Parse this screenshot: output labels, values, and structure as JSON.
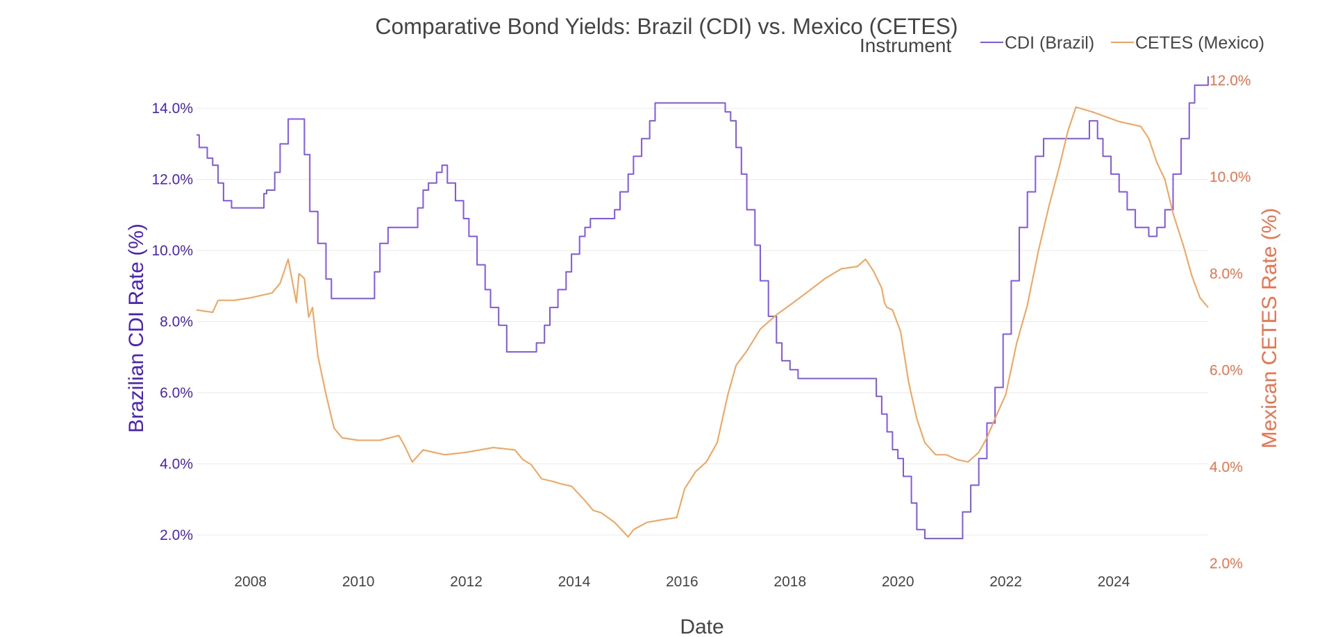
{
  "chart_data": {
    "type": "line",
    "title": "Comparative Bond Yields: Brazil (CDI) vs. Mexico (CETES)",
    "xlabel": "Date",
    "legend_title": "Instrument",
    "legend_position": "top-right",
    "x_range": [
      2007.0,
      2025.75
    ],
    "x_ticks": [
      2008,
      2010,
      2012,
      2014,
      2016,
      2018,
      2020,
      2022,
      2024
    ],
    "y_left": {
      "label": "Brazilian CDI Rate (%)",
      "range": [
        1.2,
        14.9
      ],
      "ticks": [
        2,
        4,
        6,
        8,
        10,
        12,
        14
      ],
      "tick_labels": [
        "2.0%",
        "4.0%",
        "6.0%",
        "8.0%",
        "10.0%",
        "12.0%",
        "14.0%"
      ],
      "color": "#4a1fbf"
    },
    "y_right": {
      "label": "Mexican CETES Rate (%)",
      "range": [
        2.0,
        12.0
      ],
      "ticks": [
        2,
        4,
        6,
        8,
        10,
        12
      ],
      "tick_labels": [
        "2.0%",
        "4.0%",
        "6.0%",
        "8.0%",
        "10.0%",
        "12.0%"
      ],
      "color": "#f0704a"
    },
    "series": [
      {
        "name": "CDI (Brazil)",
        "axis": "left",
        "color": "#8155ee",
        "shape": "step",
        "x": [
          2007.0,
          2007.05,
          2007.2,
          2007.3,
          2007.4,
          2007.5,
          2007.65,
          2007.8,
          2007.95,
          2008.25,
          2008.3,
          2008.45,
          2008.55,
          2008.7,
          2008.85,
          2009.0,
          2009.1,
          2009.25,
          2009.4,
          2009.5,
          2010.3,
          2010.4,
          2010.55,
          2011.1,
          2011.2,
          2011.3,
          2011.45,
          2011.55,
          2011.65,
          2011.8,
          2011.95,
          2012.05,
          2012.2,
          2012.35,
          2012.45,
          2012.6,
          2012.75,
          2013.3,
          2013.45,
          2013.55,
          2013.7,
          2013.85,
          2013.95,
          2014.1,
          2014.2,
          2014.3,
          2014.4,
          2014.75,
          2014.85,
          2015.0,
          2015.1,
          2015.25,
          2015.4,
          2015.5,
          2015.6,
          2016.8,
          2016.9,
          2017.0,
          2017.1,
          2017.2,
          2017.35,
          2017.45,
          2017.6,
          2017.75,
          2017.85,
          2018.0,
          2018.15,
          2018.25,
          2019.6,
          2019.7,
          2019.8,
          2019.9,
          2020.0,
          2020.1,
          2020.25,
          2020.35,
          2020.5,
          2020.6,
          2021.2,
          2021.35,
          2021.5,
          2021.65,
          2021.8,
          2021.95,
          2022.1,
          2022.25,
          2022.4,
          2022.55,
          2022.7,
          2023.55,
          2023.7,
          2023.8,
          2023.95,
          2024.1,
          2024.25,
          2024.4,
          2024.65,
          2024.8,
          2024.95,
          2025.1,
          2025.25,
          2025.4,
          2025.5,
          2025.75
        ],
        "y": [
          13.25,
          12.9,
          12.6,
          12.4,
          11.9,
          11.4,
          11.2,
          11.2,
          11.2,
          11.6,
          11.7,
          12.2,
          13.0,
          13.7,
          13.7,
          12.7,
          11.1,
          10.2,
          9.2,
          8.65,
          9.4,
          10.2,
          10.65,
          11.2,
          11.7,
          11.9,
          12.2,
          12.4,
          11.9,
          11.4,
          10.9,
          10.4,
          9.6,
          8.9,
          8.4,
          7.9,
          7.15,
          7.4,
          7.9,
          8.4,
          8.9,
          9.4,
          9.9,
          10.4,
          10.65,
          10.9,
          10.9,
          11.15,
          11.65,
          12.15,
          12.65,
          13.15,
          13.65,
          14.15,
          14.15,
          13.9,
          13.65,
          12.9,
          12.15,
          11.15,
          10.15,
          9.15,
          8.15,
          7.4,
          6.9,
          6.65,
          6.4,
          6.4,
          5.9,
          5.4,
          4.9,
          4.4,
          4.15,
          3.65,
          2.9,
          2.15,
          1.9,
          1.9,
          2.65,
          3.4,
          4.15,
          5.15,
          6.15,
          7.65,
          9.15,
          10.65,
          11.65,
          12.65,
          13.15,
          13.65,
          13.15,
          12.65,
          12.15,
          11.65,
          11.15,
          10.65,
          10.4,
          10.65,
          11.15,
          12.15,
          13.15,
          14.15,
          14.65,
          14.9
        ]
      },
      {
        "name": "CETES (Mexico)",
        "axis": "right",
        "color": "#f7a156",
        "shape": "linear",
        "x": [
          2007.0,
          2007.3,
          2007.4,
          2007.7,
          2008.0,
          2008.4,
          2008.55,
          2008.7,
          2008.85,
          2008.9,
          2009.0,
          2009.08,
          2009.15,
          2009.25,
          2009.4,
          2009.55,
          2009.7,
          2010.0,
          2010.4,
          2010.75,
          2010.85,
          2011.0,
          2011.2,
          2011.4,
          2011.6,
          2012.0,
          2012.5,
          2012.9,
          2013.05,
          2013.2,
          2013.4,
          2013.6,
          2013.75,
          2013.95,
          2014.2,
          2014.35,
          2014.5,
          2014.75,
          2015.0,
          2015.1,
          2015.35,
          2015.6,
          2015.9,
          2016.05,
          2016.25,
          2016.45,
          2016.65,
          2016.85,
          2017.0,
          2017.2,
          2017.45,
          2017.6,
          2017.75,
          2018.0,
          2018.3,
          2018.65,
          2018.95,
          2019.25,
          2019.4,
          2019.55,
          2019.7,
          2019.75,
          2019.8,
          2019.9,
          2020.05,
          2020.2,
          2020.35,
          2020.5,
          2020.7,
          2020.9,
          2021.1,
          2021.3,
          2021.5,
          2021.65,
          2021.8,
          2022.0,
          2022.2,
          2022.4,
          2022.6,
          2022.8,
          2023.0,
          2023.15,
          2023.3,
          2023.6,
          2023.85,
          2024.1,
          2024.3,
          2024.5,
          2024.65,
          2024.8,
          2024.95,
          2025.1,
          2025.3,
          2025.45,
          2025.6,
          2025.75
        ],
        "y": [
          7.25,
          7.2,
          7.45,
          7.45,
          7.5,
          7.6,
          7.8,
          8.3,
          7.4,
          8.0,
          7.9,
          7.1,
          7.3,
          6.3,
          5.5,
          4.8,
          4.6,
          4.55,
          4.55,
          4.65,
          4.45,
          4.1,
          4.35,
          4.3,
          4.25,
          4.3,
          4.4,
          4.35,
          4.15,
          4.05,
          3.75,
          3.7,
          3.65,
          3.6,
          3.3,
          3.1,
          3.05,
          2.85,
          2.55,
          2.7,
          2.85,
          2.9,
          2.95,
          3.55,
          3.9,
          4.1,
          4.5,
          5.5,
          6.1,
          6.4,
          6.85,
          7.0,
          7.15,
          7.35,
          7.6,
          7.9,
          8.1,
          8.15,
          8.3,
          8.05,
          7.7,
          7.4,
          7.3,
          7.25,
          6.8,
          5.75,
          5.0,
          4.5,
          4.25,
          4.25,
          4.15,
          4.1,
          4.3,
          4.6,
          5.0,
          5.5,
          6.55,
          7.35,
          8.45,
          9.4,
          10.25,
          10.95,
          11.45,
          11.35,
          11.25,
          11.15,
          11.1,
          11.05,
          10.8,
          10.3,
          9.95,
          9.25,
          8.55,
          7.95,
          7.5,
          7.3
        ]
      }
    ]
  }
}
